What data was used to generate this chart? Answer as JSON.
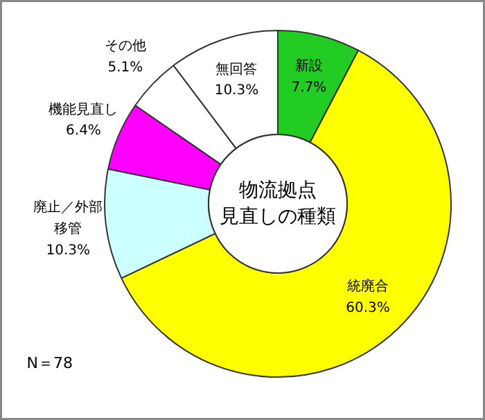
{
  "chart_data": {
    "type": "donut",
    "title": "物流拠点見直しの種類",
    "categories": [
      "新設",
      "統廃合",
      "廃止／外部移管",
      "機能見直し",
      "その他",
      "無回答"
    ],
    "values": [
      7.7,
      60.3,
      10.3,
      6.4,
      5.1,
      10.3
    ],
    "value_labels": [
      "7.7%",
      "60.3%",
      "10.3%",
      "6.4%",
      "5.1%",
      "10.3%"
    ],
    "colors": [
      "#22cc22",
      "#ffff00",
      "#ccffff",
      "#ff00ff",
      "#ffffff",
      "#ffffff"
    ],
    "annotations": [
      "N＝78"
    ]
  }
}
